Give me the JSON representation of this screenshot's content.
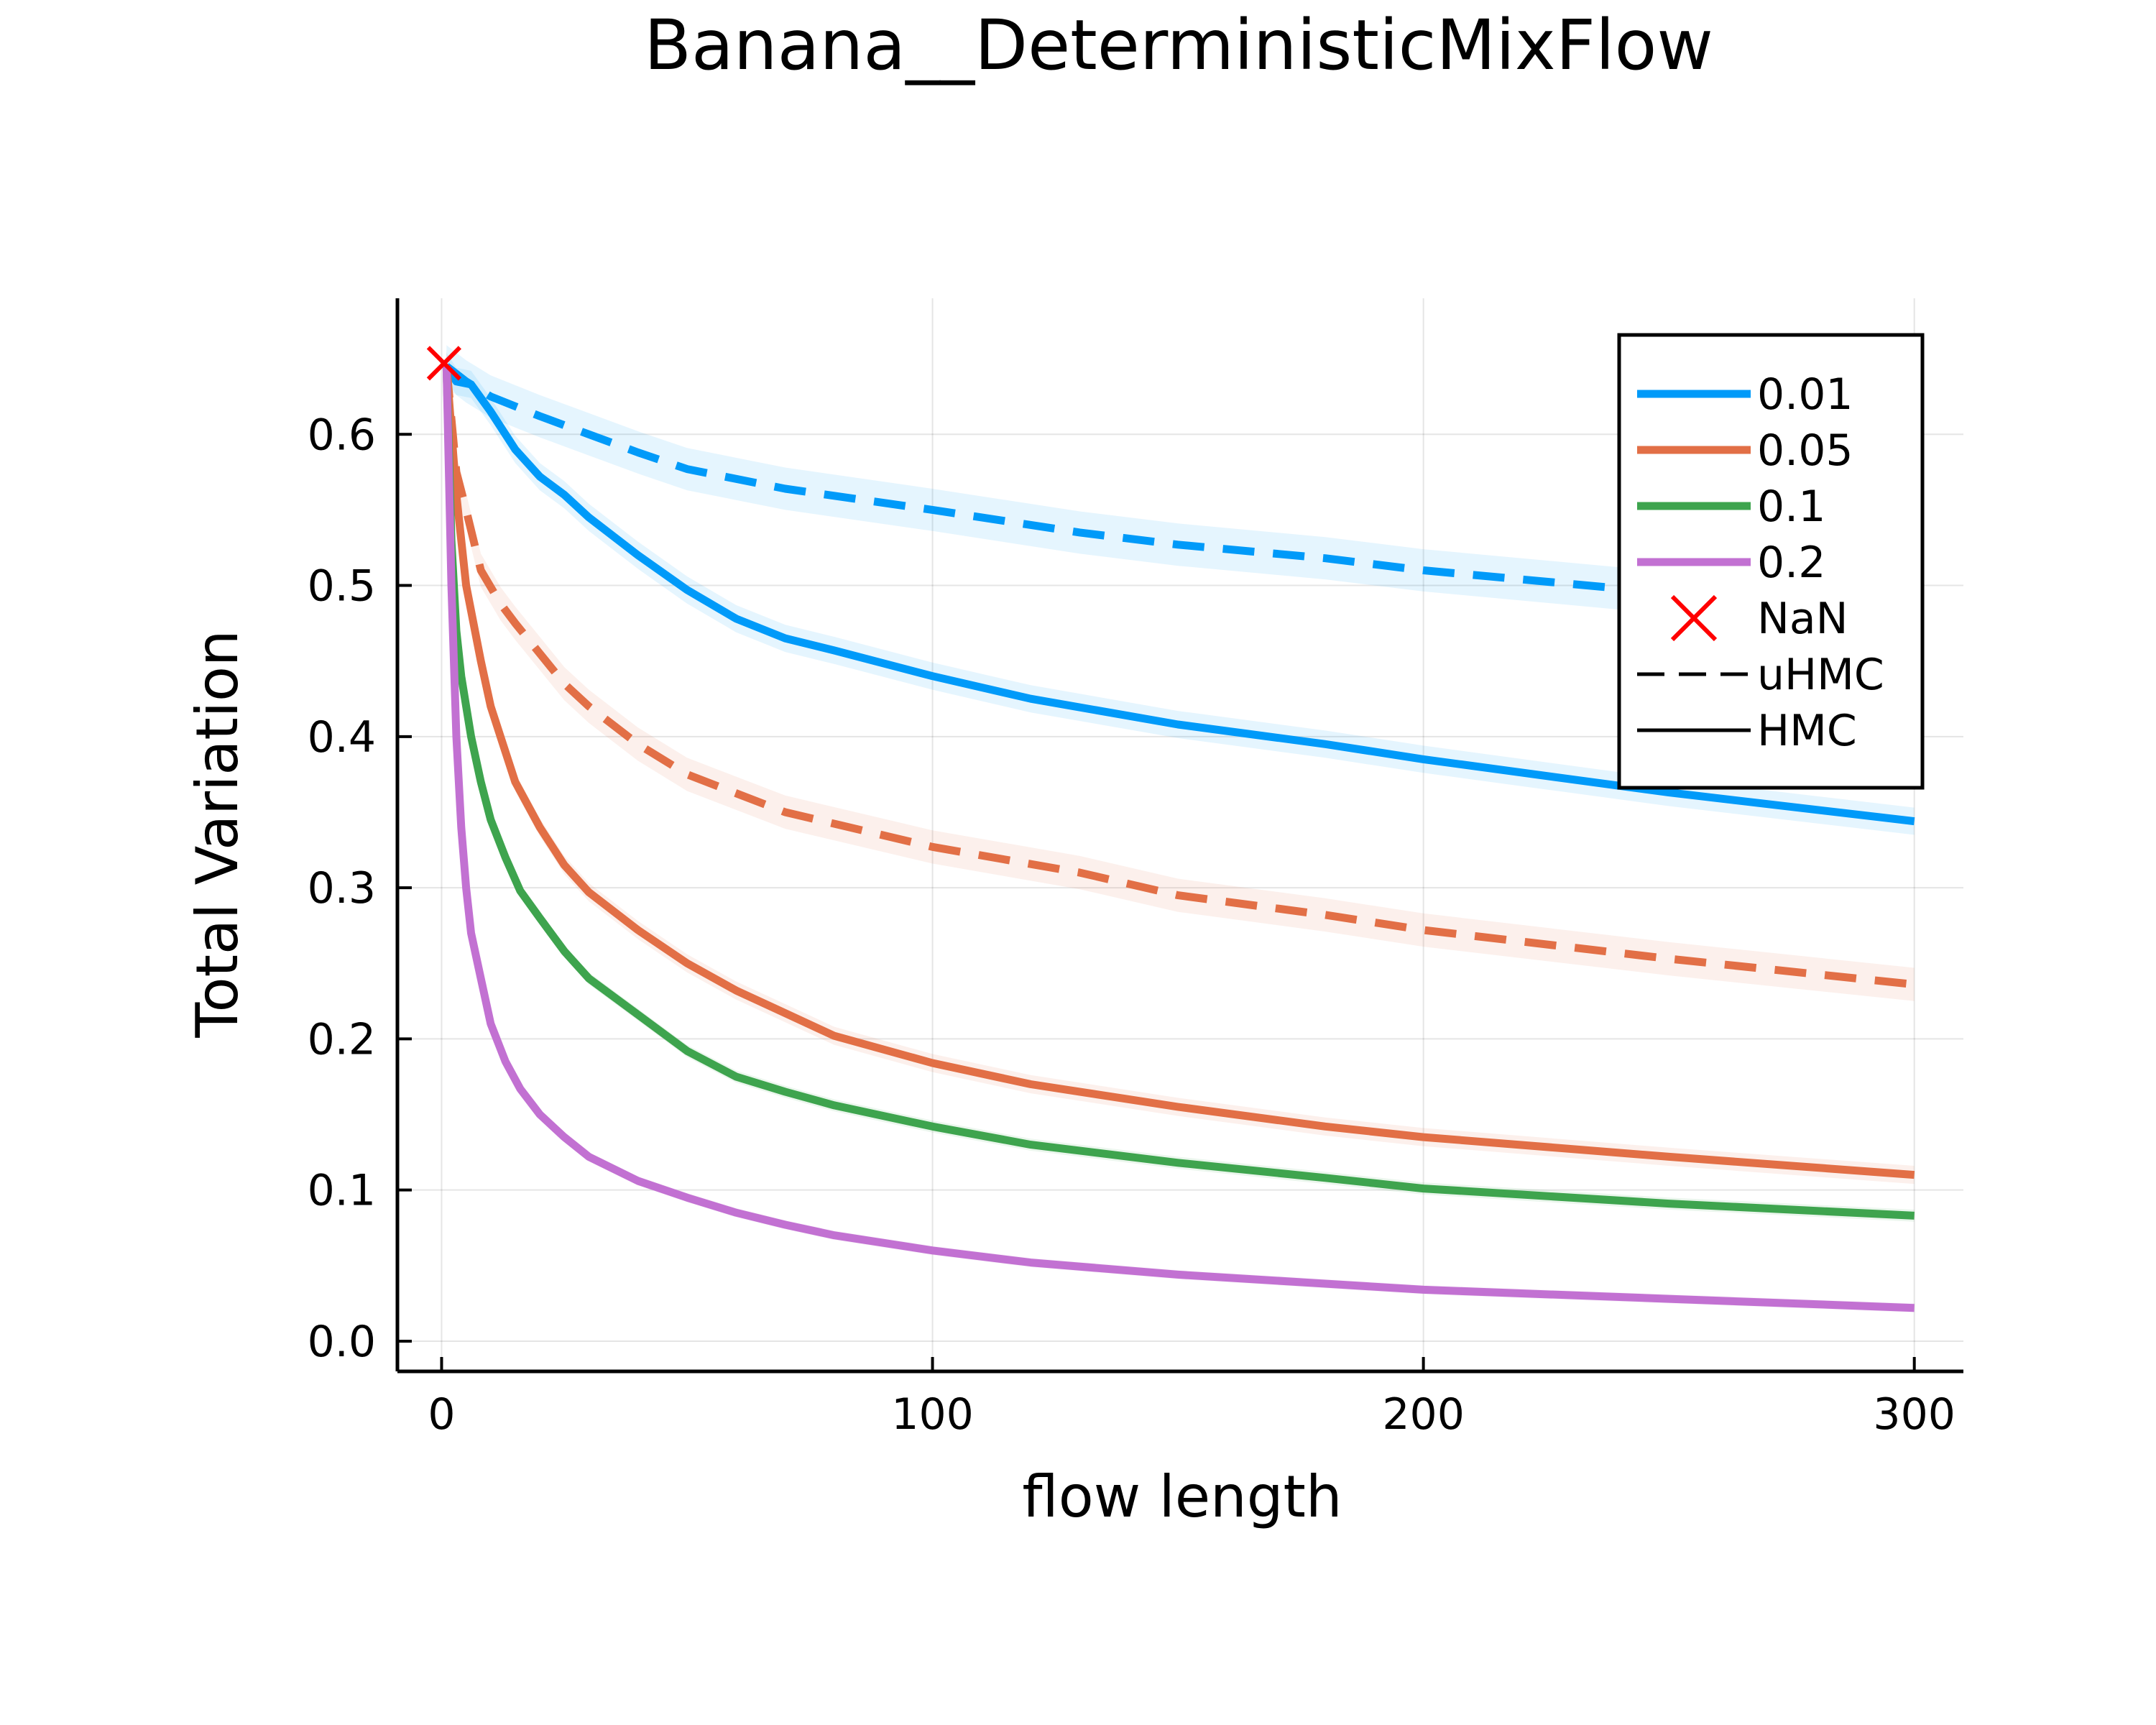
{
  "chart_data": {
    "type": "line",
    "title": "Banana__DeterministicMixFlow",
    "xlabel": "flow length",
    "ylabel": "Total Variation",
    "xlim": [
      -9,
      310
    ],
    "ylim": [
      -0.02,
      0.69
    ],
    "x_ticks": [
      0,
      100,
      200,
      300
    ],
    "x_tick_labels": [
      "0",
      "100",
      "200",
      "300"
    ],
    "y_ticks": [
      0.0,
      0.1,
      0.2,
      0.3,
      0.4,
      0.5,
      0.6
    ],
    "y_tick_labels": [
      "0.0",
      "0.1",
      "0.2",
      "0.3",
      "0.4",
      "0.5",
      "0.6"
    ],
    "grid": true,
    "legend_position": "top-right",
    "legend": [
      {
        "label": "0.01",
        "kind": "line",
        "color": "#009af9",
        "dash": "solid"
      },
      {
        "label": "0.05",
        "kind": "line",
        "color": "#e26f46",
        "dash": "solid"
      },
      {
        "label": "0.1",
        "kind": "line",
        "color": "#3ea44e",
        "dash": "solid"
      },
      {
        "label": "0.2",
        "kind": "line",
        "color": "#c271d2",
        "dash": "solid"
      },
      {
        "label": "NaN",
        "kind": "marker",
        "color": "#ff0000"
      },
      {
        "label": "uHMC",
        "kind": "line",
        "color": "#000000",
        "dash": "dashed"
      },
      {
        "label": "HMC",
        "kind": "line",
        "color": "#000000",
        "dash": "solid"
      }
    ],
    "nan_markers": [
      {
        "x": 0.5,
        "y": 0.647
      }
    ],
    "series": [
      {
        "step": "0.01",
        "method": "HMC",
        "color": "#009af9",
        "dash": "solid",
        "band": 0.009,
        "x": [
          1,
          3,
          6,
          10,
          15,
          20,
          25,
          30,
          40,
          50,
          60,
          70,
          80,
          100,
          120,
          150,
          180,
          200,
          250,
          300
        ],
        "y": [
          0.645,
          0.635,
          0.633,
          0.615,
          0.59,
          0.572,
          0.56,
          0.545,
          0.52,
          0.497,
          0.478,
          0.465,
          0.457,
          0.44,
          0.425,
          0.408,
          0.395,
          0.385,
          0.363,
          0.344
        ]
      },
      {
        "step": "0.01",
        "method": "uHMC",
        "color": "#009af9",
        "dash": "dashed",
        "band": 0.014,
        "x": [
          1,
          5,
          10,
          20,
          30,
          40,
          50,
          70,
          100,
          130,
          150,
          180,
          200,
          250,
          300
        ],
        "y": [
          0.645,
          0.635,
          0.625,
          0.612,
          0.6,
          0.588,
          0.577,
          0.564,
          0.55,
          0.535,
          0.527,
          0.518,
          0.51,
          0.495,
          0.483
        ]
      },
      {
        "step": "0.05",
        "method": "HMC",
        "color": "#e26f46",
        "dash": "solid",
        "band": 0.006,
        "x": [
          1,
          3,
          5,
          8,
          10,
          12,
          15,
          20,
          25,
          30,
          40,
          50,
          60,
          70,
          80,
          100,
          120,
          150,
          180,
          200,
          250,
          300
        ],
        "y": [
          0.645,
          0.56,
          0.5,
          0.45,
          0.42,
          0.4,
          0.37,
          0.34,
          0.315,
          0.297,
          0.272,
          0.25,
          0.232,
          0.217,
          0.202,
          0.184,
          0.17,
          0.155,
          0.142,
          0.135,
          0.122,
          0.11
        ]
      },
      {
        "step": "0.05",
        "method": "uHMC",
        "color": "#e26f46",
        "dash": "dashed",
        "band": 0.011,
        "x": [
          1,
          3,
          5,
          8,
          12,
          15,
          20,
          25,
          30,
          40,
          50,
          70,
          100,
          130,
          150,
          180,
          200,
          250,
          300
        ],
        "y": [
          0.645,
          0.575,
          0.55,
          0.51,
          0.488,
          0.475,
          0.455,
          0.435,
          0.42,
          0.395,
          0.375,
          0.35,
          0.327,
          0.31,
          0.295,
          0.282,
          0.272,
          0.253,
          0.236
        ]
      },
      {
        "step": "0.1",
        "method": "HMC",
        "color": "#3ea44e",
        "dash": "solid",
        "band": 0.004,
        "x": [
          1,
          2,
          3,
          4,
          6,
          8,
          10,
          13,
          16,
          20,
          25,
          30,
          40,
          50,
          60,
          70,
          80,
          100,
          120,
          150,
          180,
          200,
          250,
          300
        ],
        "y": [
          0.645,
          0.53,
          0.47,
          0.44,
          0.4,
          0.37,
          0.345,
          0.32,
          0.298,
          0.28,
          0.258,
          0.24,
          0.216,
          0.192,
          0.175,
          0.165,
          0.156,
          0.142,
          0.13,
          0.118,
          0.108,
          0.101,
          0.091,
          0.083
        ]
      },
      {
        "step": "0.2",
        "method": "HMC",
        "color": "#c271d2",
        "dash": "solid",
        "band": 0.003,
        "x": [
          1,
          2,
          3,
          4,
          5,
          6,
          8,
          10,
          13,
          16,
          20,
          25,
          30,
          40,
          50,
          60,
          70,
          80,
          100,
          120,
          150,
          180,
          200,
          250,
          300
        ],
        "y": [
          0.645,
          0.5,
          0.4,
          0.34,
          0.3,
          0.27,
          0.24,
          0.21,
          0.185,
          0.167,
          0.15,
          0.135,
          0.122,
          0.106,
          0.095,
          0.085,
          0.077,
          0.07,
          0.06,
          0.052,
          0.044,
          0.038,
          0.034,
          0.028,
          0.022
        ]
      }
    ]
  }
}
